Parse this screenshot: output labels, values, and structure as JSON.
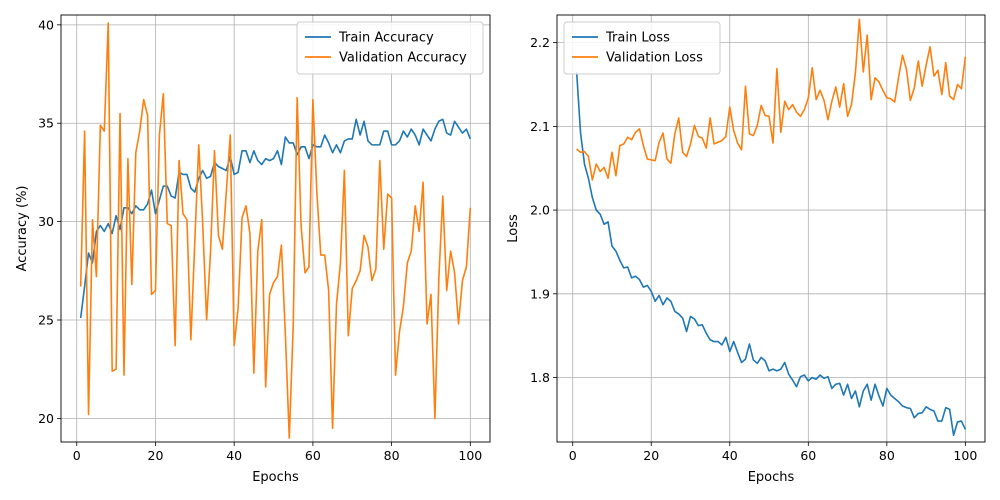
{
  "colors": {
    "train": "#1f77b4",
    "validation": "#ff7f0e",
    "grid": "#b0b0b0"
  },
  "chart_data": [
    {
      "type": "line",
      "xlabel": "Epochs",
      "ylabel": "Accuracy (%)",
      "xlim": [
        -4,
        105
      ],
      "ylim": [
        18.8,
        40.5
      ],
      "xticks": [
        0,
        20,
        40,
        60,
        80,
        100
      ],
      "yticks": [
        20,
        25,
        30,
        35,
        40
      ],
      "grid": true,
      "legend_position": "top-right",
      "x": [
        1,
        2,
        3,
        4,
        5,
        6,
        7,
        8,
        9,
        10,
        11,
        12,
        13,
        14,
        15,
        16,
        17,
        18,
        19,
        20,
        21,
        22,
        23,
        24,
        25,
        26,
        27,
        28,
        29,
        30,
        31,
        32,
        33,
        34,
        35,
        36,
        37,
        38,
        39,
        40,
        41,
        42,
        43,
        44,
        45,
        46,
        47,
        48,
        49,
        50,
        51,
        52,
        53,
        54,
        55,
        56,
        57,
        58,
        59,
        60,
        61,
        62,
        63,
        64,
        65,
        66,
        67,
        68,
        69,
        70,
        71,
        72,
        73,
        74,
        75,
        76,
        77,
        78,
        79,
        80,
        81,
        82,
        83,
        84,
        85,
        86,
        87,
        88,
        89,
        90,
        91,
        92,
        93,
        94,
        95,
        96,
        97,
        98,
        99,
        100
      ],
      "series": [
        {
          "name": "Train Accuracy",
          "color_key": "train",
          "values": [
            25.1,
            26.7,
            28.4,
            27.9,
            29.5,
            29.8,
            29.5,
            29.9,
            29.4,
            30.3,
            29.6,
            30.7,
            30.7,
            30.4,
            30.8,
            30.6,
            30.6,
            30.9,
            31.6,
            30.4,
            31.1,
            31.8,
            31.8,
            31.3,
            31.2,
            32.5,
            32.4,
            32.4,
            31.7,
            31.5,
            32.2,
            32.6,
            32.2,
            32.3,
            33.0,
            32.8,
            32.7,
            32.6,
            33.3,
            32.4,
            32.5,
            33.6,
            33.6,
            33.0,
            33.6,
            33.1,
            32.9,
            33.2,
            33.1,
            33.2,
            33.6,
            32.9,
            34.3,
            34.0,
            34.0,
            33.4,
            33.8,
            33.8,
            33.2,
            33.9,
            33.8,
            33.8,
            34.4,
            34.0,
            33.5,
            33.9,
            33.5,
            34.1,
            34.2,
            34.2,
            35.2,
            34.4,
            35.1,
            34.1,
            33.9,
            33.9,
            33.9,
            34.6,
            34.6,
            33.9,
            33.9,
            34.1,
            34.6,
            34.3,
            34.7,
            34.4,
            33.9,
            34.7,
            34.4,
            34.1,
            34.7,
            35.1,
            35.2,
            34.5,
            34.4,
            35.1,
            34.8,
            34.5,
            34.7,
            34.2
          ]
        },
        {
          "name": "Validation Accuracy",
          "color_key": "validation",
          "values": [
            26.7,
            34.6,
            20.2,
            30.1,
            27.2,
            34.9,
            34.6,
            40.1,
            22.4,
            22.5,
            35.5,
            22.2,
            33.2,
            26.8,
            33.5,
            34.6,
            36.2,
            35.4,
            26.3,
            26.5,
            34.4,
            36.5,
            29.9,
            29.8,
            23.7,
            33.1,
            30.4,
            30.1,
            24.0,
            29.0,
            33.9,
            29.9,
            25.0,
            28.5,
            33.6,
            29.3,
            28.6,
            31.5,
            34.4,
            23.7,
            25.6,
            30.2,
            30.8,
            29.4,
            22.3,
            28.5,
            30.1,
            21.6,
            26.3,
            26.9,
            27.2,
            28.8,
            24.3,
            19.0,
            24.7,
            36.3,
            29.8,
            27.4,
            27.7,
            36.2,
            31.5,
            28.3,
            28.3,
            26.5,
            19.5,
            25.8,
            27.9,
            32.6,
            24.2,
            26.6,
            27.0,
            27.5,
            29.3,
            28.7,
            27.0,
            27.6,
            33.1,
            28.6,
            31.4,
            31.2,
            22.2,
            24.4,
            25.7,
            27.9,
            28.5,
            30.8,
            29.5,
            32.0,
            24.8,
            26.3,
            20.0,
            27.1,
            31.3,
            26.5,
            28.5,
            27.4,
            24.8,
            27.0,
            27.7,
            30.7
          ]
        }
      ]
    },
    {
      "type": "line",
      "xlabel": "Epochs",
      "ylabel": "Loss",
      "xlim": [
        -4,
        105
      ],
      "ylim": [
        1.723,
        2.233
      ],
      "xticks": [
        0,
        20,
        40,
        60,
        80,
        100
      ],
      "yticks": [
        1.8,
        1.9,
        2.0,
        2.1,
        2.2
      ],
      "grid": true,
      "legend_position": "top-left",
      "x": [
        1,
        2,
        3,
        4,
        5,
        6,
        7,
        8,
        9,
        10,
        11,
        12,
        13,
        14,
        15,
        16,
        17,
        18,
        19,
        20,
        21,
        22,
        23,
        24,
        25,
        26,
        27,
        28,
        29,
        30,
        31,
        32,
        33,
        34,
        35,
        36,
        37,
        38,
        39,
        40,
        41,
        42,
        43,
        44,
        45,
        46,
        47,
        48,
        49,
        50,
        51,
        52,
        53,
        54,
        55,
        56,
        57,
        58,
        59,
        60,
        61,
        62,
        63,
        64,
        65,
        66,
        67,
        68,
        69,
        70,
        71,
        72,
        73,
        74,
        75,
        76,
        77,
        78,
        79,
        80,
        81,
        82,
        83,
        84,
        85,
        86,
        87,
        88,
        89,
        90,
        91,
        92,
        93,
        94,
        95,
        96,
        97,
        98,
        99,
        100
      ],
      "series": [
        {
          "name": "Train Loss",
          "color_key": "train",
          "values": [
            2.165,
            2.092,
            2.055,
            2.038,
            2.015,
            2.0,
            1.995,
            1.983,
            1.986,
            1.957,
            1.951,
            1.94,
            1.931,
            1.932,
            1.919,
            1.921,
            1.917,
            1.908,
            1.91,
            1.903,
            1.891,
            1.898,
            1.887,
            1.895,
            1.891,
            1.879,
            1.876,
            1.871,
            1.855,
            1.873,
            1.87,
            1.862,
            1.863,
            1.853,
            1.845,
            1.843,
            1.843,
            1.839,
            1.848,
            1.831,
            1.843,
            1.83,
            1.818,
            1.822,
            1.84,
            1.821,
            1.817,
            1.824,
            1.82,
            1.808,
            1.81,
            1.808,
            1.81,
            1.818,
            1.804,
            1.797,
            1.789,
            1.801,
            1.803,
            1.796,
            1.8,
            1.798,
            1.803,
            1.799,
            1.801,
            1.787,
            1.792,
            1.793,
            1.779,
            1.792,
            1.775,
            1.784,
            1.765,
            1.784,
            1.792,
            1.773,
            1.792,
            1.778,
            1.766,
            1.787,
            1.779,
            1.775,
            1.771,
            1.766,
            1.764,
            1.763,
            1.752,
            1.757,
            1.758,
            1.765,
            1.762,
            1.76,
            1.748,
            1.748,
            1.764,
            1.762,
            1.731,
            1.747,
            1.748,
            1.738
          ]
        },
        {
          "name": "Validation Loss",
          "color_key": "validation",
          "values": [
            2.073,
            2.069,
            2.07,
            2.064,
            2.036,
            2.055,
            2.046,
            2.051,
            2.038,
            2.069,
            2.041,
            2.077,
            2.079,
            2.087,
            2.084,
            2.093,
            2.097,
            2.077,
            2.061,
            2.06,
            2.059,
            2.081,
            2.092,
            2.061,
            2.056,
            2.091,
            2.11,
            2.069,
            2.064,
            2.079,
            2.101,
            2.088,
            2.086,
            2.074,
            2.11,
            2.079,
            2.081,
            2.083,
            2.088,
            2.123,
            2.095,
            2.08,
            2.072,
            2.148,
            2.091,
            2.089,
            2.101,
            2.125,
            2.113,
            2.112,
            2.08,
            2.169,
            2.093,
            2.13,
            2.12,
            2.126,
            2.117,
            2.112,
            2.12,
            2.134,
            2.17,
            2.132,
            2.143,
            2.131,
            2.108,
            2.13,
            2.147,
            2.123,
            2.151,
            2.112,
            2.126,
            2.164,
            2.228,
            2.165,
            2.209,
            2.132,
            2.158,
            2.153,
            2.143,
            2.134,
            2.133,
            2.129,
            2.159,
            2.185,
            2.168,
            2.131,
            2.146,
            2.178,
            2.148,
            2.173,
            2.195,
            2.16,
            2.167,
            2.138,
            2.176,
            2.136,
            2.132,
            2.15,
            2.145,
            2.183
          ]
        }
      ]
    }
  ]
}
